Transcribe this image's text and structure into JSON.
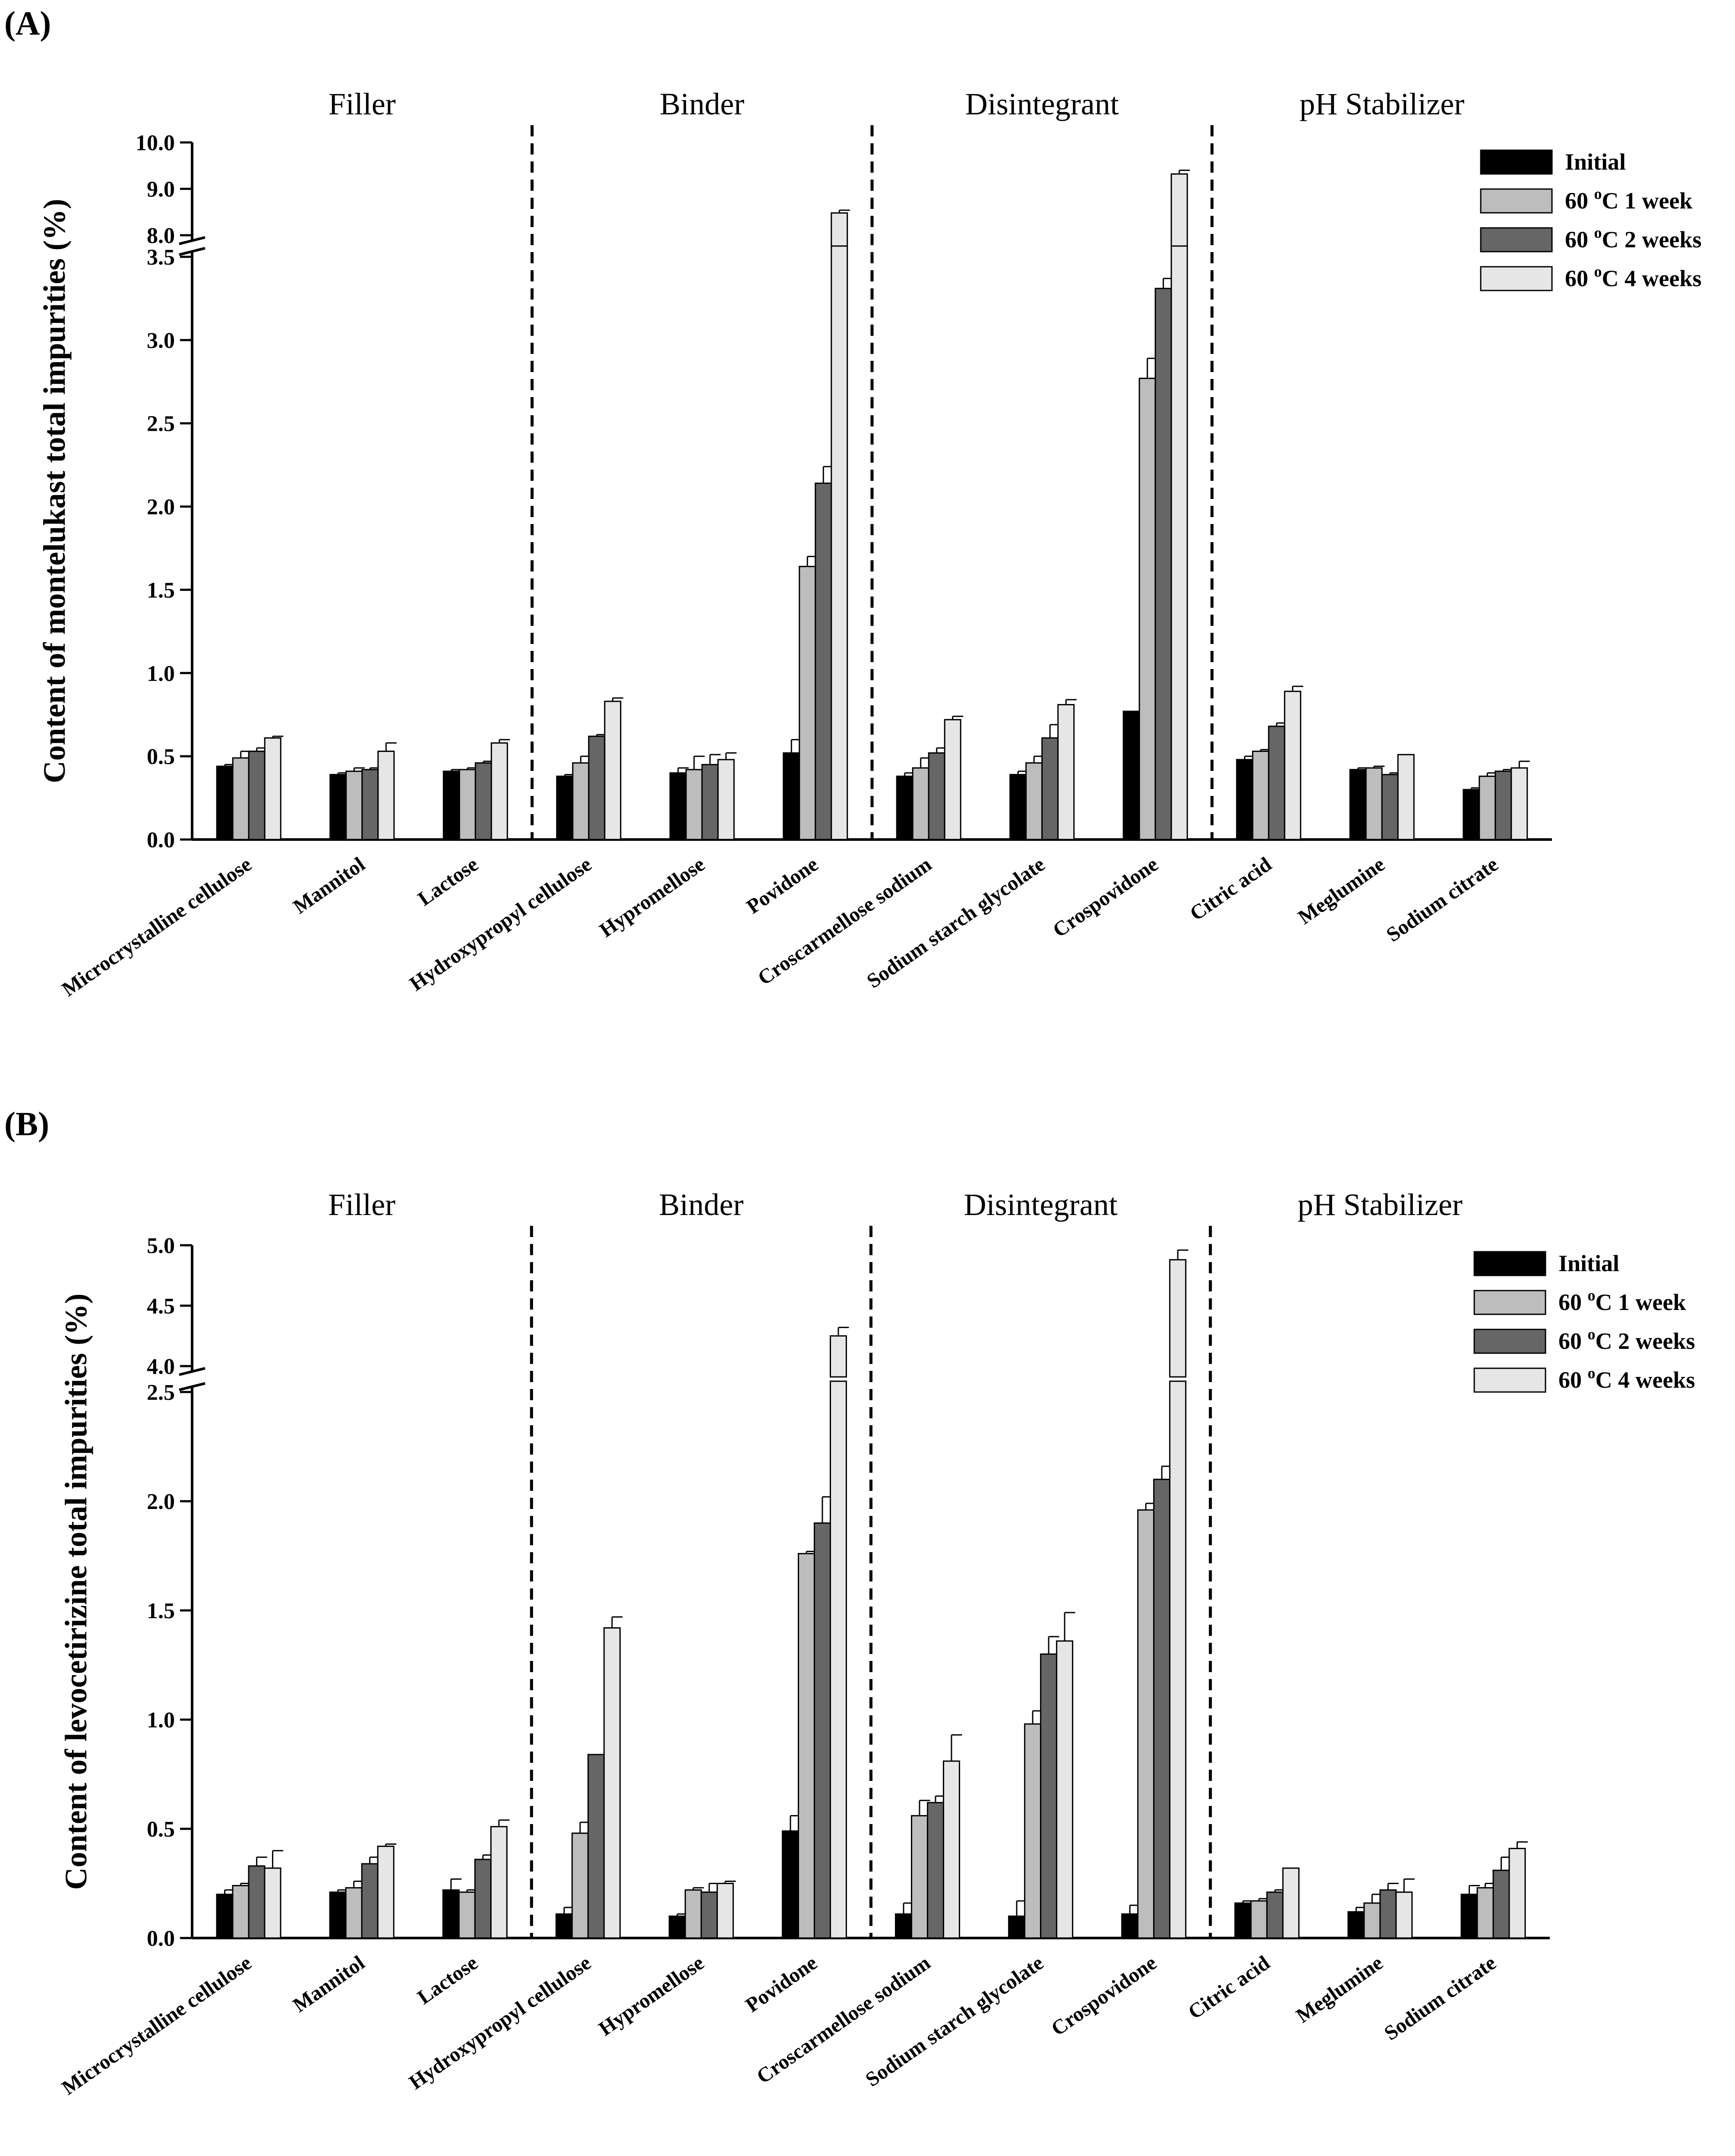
{
  "chart_data": [
    {
      "panel_label": "(A)",
      "type": "bar",
      "ylabel": "Content of montelukast total impurities (%)",
      "groups": [
        {
          "name": "Filler",
          "n": 3
        },
        {
          "name": "Binder",
          "n": 3
        },
        {
          "name": "Disintegrant",
          "n": 3
        },
        {
          "name": "pH Stabilizer",
          "n": 3
        }
      ],
      "categories": [
        "Microcrystalline cellulose",
        "Mannitol",
        "Lactose",
        "Hydroxypropyl cellulose",
        "Hypromellose",
        "Povidone",
        "Croscarmellose sodium",
        "Sodium starch glycolate",
        "Crospovidone",
        "Citric acid",
        "Meglumine",
        "Sodium citrate"
      ],
      "series": [
        {
          "name": "Initial",
          "color": "#000000",
          "values": [
            0.44,
            0.39,
            0.41,
            0.38,
            0.4,
            0.52,
            0.38,
            0.39,
            0.77,
            0.48,
            0.42,
            0.3
          ],
          "errors": [
            0.01,
            0.01,
            0.01,
            0.01,
            0.03,
            0.08,
            0.02,
            0.02,
            0.0,
            0.02,
            0.01,
            0.01
          ]
        },
        {
          "name": "60 °C 1 week",
          "color": "#bdbdbd",
          "values": [
            0.49,
            0.41,
            0.42,
            0.46,
            0.42,
            1.64,
            0.43,
            0.46,
            2.77,
            0.53,
            0.43,
            0.38
          ],
          "errors": [
            0.04,
            0.02,
            0.01,
            0.04,
            0.08,
            0.06,
            0.06,
            0.04,
            0.12,
            0.01,
            0.01,
            0.02
          ]
        },
        {
          "name": "60 °C 2 weeks",
          "color": "#666666",
          "values": [
            0.53,
            0.42,
            0.46,
            0.62,
            0.45,
            2.14,
            0.52,
            0.61,
            3.31,
            0.68,
            0.39,
            0.41
          ],
          "errors": [
            0.02,
            0.01,
            0.01,
            0.01,
            0.06,
            0.1,
            0.03,
            0.08,
            0.06,
            0.02,
            0.01,
            0.01
          ]
        },
        {
          "name": "60 °C 4 weeks",
          "color": "#e6e6e6",
          "values": [
            0.61,
            0.53,
            0.58,
            0.83,
            0.48,
            8.48,
            0.72,
            0.81,
            9.32,
            0.89,
            0.51,
            0.43
          ],
          "errors": [
            0.01,
            0.05,
            0.02,
            0.02,
            0.04,
            0.06,
            0.02,
            0.03,
            0.08,
            0.03,
            0.0,
            0.04
          ]
        }
      ],
      "ylim_lower": [
        0.0,
        3.5
      ],
      "ylim_upper": [
        8.0,
        10.0
      ],
      "yticks_lower": [
        "0.0",
        "0.5",
        "1.0",
        "1.5",
        "2.0",
        "2.5",
        "3.0",
        "3.5"
      ],
      "yticks_upper": [
        "8.0",
        "9.0",
        "10.0"
      ],
      "legend_position": "top-right"
    },
    {
      "panel_label": "(B)",
      "type": "bar",
      "ylabel": "Content of levocetirizine total impurities (%)",
      "groups": [
        {
          "name": "Filler",
          "n": 3
        },
        {
          "name": "Binder",
          "n": 3
        },
        {
          "name": "Disintegrant",
          "n": 3
        },
        {
          "name": "pH Stabilizer",
          "n": 3
        }
      ],
      "categories": [
        "Microcrystalline cellulose",
        "Mannitol",
        "Lactose",
        "Hydroxypropyl cellulose",
        "Hypromellose",
        "Povidone",
        "Croscarmellose sodium",
        "Sodium starch glycolate",
        "Crospovidone",
        "Citric acid",
        "Meglumine",
        "Sodium citrate"
      ],
      "series": [
        {
          "name": "Initial",
          "color": "#000000",
          "values": [
            0.2,
            0.21,
            0.22,
            0.11,
            0.1,
            0.49,
            0.11,
            0.1,
            0.11,
            0.16,
            0.12,
            0.2
          ],
          "errors": [
            0.02,
            0.01,
            0.05,
            0.03,
            0.01,
            0.07,
            0.05,
            0.07,
            0.04,
            0.01,
            0.02,
            0.04
          ]
        },
        {
          "name": "60 °C 1 week",
          "color": "#bdbdbd",
          "values": [
            0.24,
            0.23,
            0.21,
            0.48,
            0.22,
            1.76,
            0.56,
            0.98,
            1.96,
            0.17,
            0.16,
            0.23
          ],
          "errors": [
            0.01,
            0.03,
            0.01,
            0.05,
            0.01,
            0.01,
            0.07,
            0.06,
            0.03,
            0.01,
            0.04,
            0.02
          ]
        },
        {
          "name": "60 °C 2 weeks",
          "color": "#666666",
          "values": [
            0.33,
            0.34,
            0.36,
            0.84,
            0.21,
            1.9,
            0.62,
            1.3,
            2.1,
            0.21,
            0.22,
            0.31
          ],
          "errors": [
            0.04,
            0.03,
            0.02,
            0.0,
            0.04,
            0.12,
            0.03,
            0.08,
            0.06,
            0.01,
            0.03,
            0.06
          ]
        },
        {
          "name": "60 °C 4 weeks",
          "color": "#e6e6e6",
          "values": [
            0.32,
            0.42,
            0.51,
            1.42,
            0.25,
            4.25,
            0.81,
            1.36,
            4.88,
            0.32,
            0.21,
            0.41
          ],
          "errors": [
            0.08,
            0.01,
            0.03,
            0.05,
            0.01,
            0.07,
            0.12,
            0.13,
            0.08,
            0.0,
            0.06,
            0.03
          ]
        }
      ],
      "ylim_lower": [
        0.0,
        2.5
      ],
      "ylim_upper": [
        4.0,
        5.0
      ],
      "yticks_lower": [
        "0.0",
        "0.5",
        "1.0",
        "1.5",
        "2.0",
        "2.5"
      ],
      "yticks_upper": [
        "4.0",
        "4.5",
        "5.0"
      ],
      "legend_position": "top-right"
    }
  ],
  "degree_label": {
    "superscript": "o"
  }
}
